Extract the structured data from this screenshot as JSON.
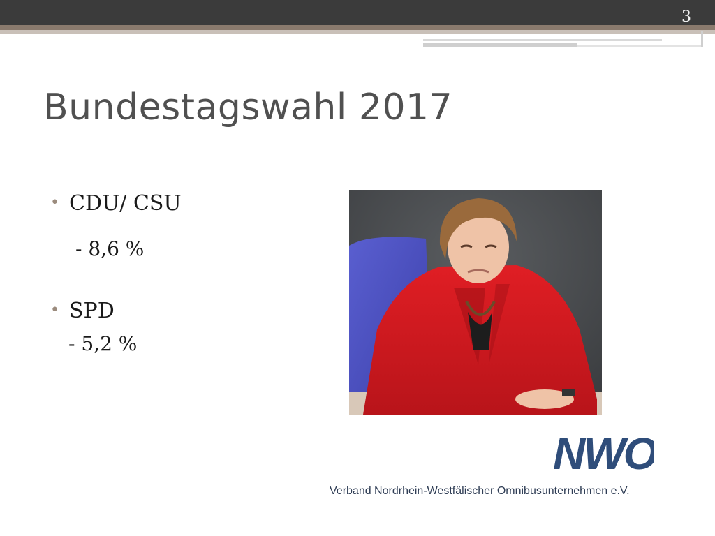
{
  "slide": {
    "number": "3",
    "title": "Bundestagswahl 2017",
    "bullets": [
      {
        "label": "CDU/ CSU",
        "change": "- 8,6 %"
      },
      {
        "label": "SPD",
        "change": "- 5,2 %"
      }
    ]
  },
  "logo": {
    "text": "NWO",
    "association": "Verband Nordrhein-Westfälischer Omnibusunternehmen e.V."
  },
  "colors": {
    "top_bar": "#3b3b3b",
    "accent_stripe": "#8a7a6d",
    "title": "#505050",
    "logo": "#2f4d7a"
  }
}
